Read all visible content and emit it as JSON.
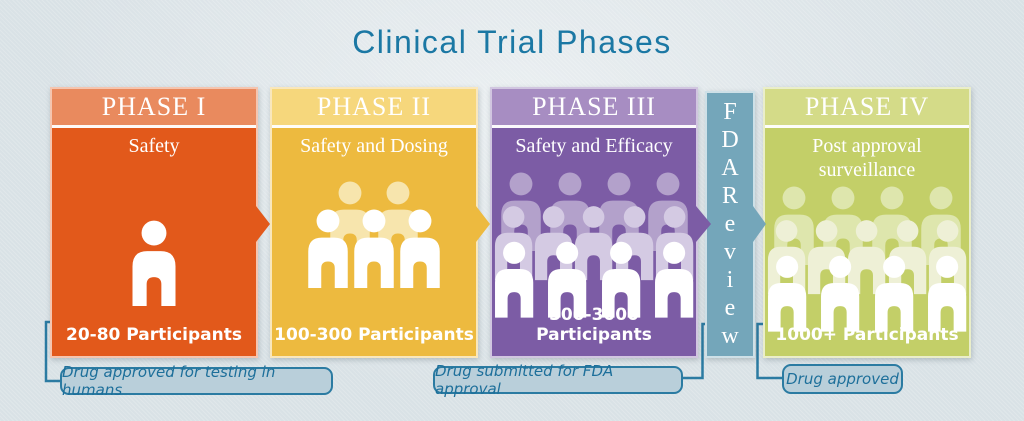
{
  "title": "Clinical Trial Phases",
  "colors": {
    "background": "#dce4e8",
    "title_text": "#1b78a4",
    "connector": "#2b7ba2",
    "callout_background": "#b9cfda",
    "callout_border": "#2b7ba2",
    "callout_text": "#1d6f9a"
  },
  "phases": [
    {
      "title": "PHASE I",
      "subtitle": "Safety",
      "participants": "20-80 Participants",
      "header_color": "#e98a5e",
      "body_color": "#e2591b",
      "people_tones": {
        "front": "#ffffff"
      },
      "people_rows": [
        {
          "count": 1,
          "tone": "front"
        }
      ]
    },
    {
      "title": "PHASE II",
      "subtitle": "Safety and Dosing",
      "participants": "100-300 Participants",
      "header_color": "#f6d77c",
      "body_color": "#edba3f",
      "people_tones": {
        "back": "#f7e5ad",
        "front": "#ffffff"
      },
      "people_rows": [
        {
          "count": 2,
          "tone": "back"
        },
        {
          "count": 3,
          "tone": "front"
        }
      ]
    },
    {
      "title": "PHASE III",
      "subtitle": "Safety and Efficacy",
      "participants": "300-3000 Participants",
      "header_color": "#a78dc2",
      "body_color": "#7c5ca5",
      "people_tones": {
        "back": "#b3a1cb",
        "mid": "#d4cae3",
        "front": "#ffffff"
      },
      "people_rows": [
        {
          "count": 4,
          "tone": "back"
        },
        {
          "count": 5,
          "tone": "mid"
        },
        {
          "count": 4,
          "tone": "front"
        }
      ]
    },
    {
      "title": "PHASE IV",
      "subtitle": "Post approval surveillance",
      "participants": "1000+ Participants",
      "header_color": "#d4db88",
      "body_color": "#c3cf68",
      "people_tones": {
        "back": "#dee6ad",
        "mid": "#eef0d6",
        "front": "#ffffff"
      },
      "people_rows": [
        {
          "count": 4,
          "tone": "back"
        },
        {
          "count": 5,
          "tone": "mid"
        },
        {
          "count": 4,
          "tone": "front"
        }
      ]
    }
  ],
  "fda": {
    "label": "FDA Review",
    "vertical_text": "FDAReview",
    "color": "#74a6ba"
  },
  "callouts": [
    {
      "text": "Drug approved for testing in humans"
    },
    {
      "text": "Drug submitted for FDA approval"
    },
    {
      "text": "Drug approved"
    }
  ]
}
